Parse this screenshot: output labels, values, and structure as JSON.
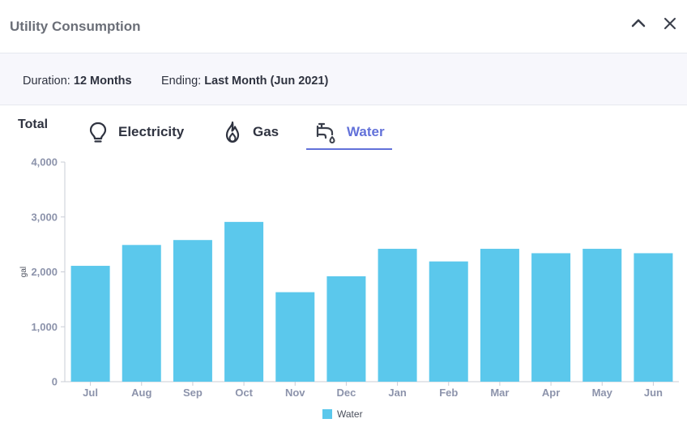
{
  "header": {
    "title": "Utility Consumption",
    "collapse_icon": "chevron-up-icon",
    "close_icon": "close-icon"
  },
  "filters": {
    "duration_label": "Duration:",
    "duration_value": "12 Months",
    "ending_label": "Ending:",
    "ending_value": "Last Month (Jun 2021)"
  },
  "tabs": {
    "total": "Total",
    "items": [
      {
        "label": "Electricity",
        "icon": "lightbulb-icon",
        "active": false
      },
      {
        "label": "Gas",
        "icon": "flame-icon",
        "active": false
      },
      {
        "label": "Water",
        "icon": "faucet-icon",
        "active": true
      }
    ]
  },
  "colors": {
    "accent": "#6271d9",
    "bar": "#5bc8ec"
  },
  "chart_data": {
    "type": "bar",
    "categories": [
      "Jul",
      "Aug",
      "Sep",
      "Oct",
      "Nov",
      "Dec",
      "Jan",
      "Feb",
      "Mar",
      "Apr",
      "May",
      "Jun"
    ],
    "series": [
      {
        "name": "Water",
        "values": [
          2110,
          2490,
          2580,
          2910,
          1630,
          1920,
          2420,
          2190,
          2420,
          2340,
          2420,
          2340
        ]
      }
    ],
    "ylabel": "gal",
    "ylim": [
      0,
      4000
    ],
    "yticks": [
      "0",
      "1,000",
      "2,000",
      "3,000",
      "4,000"
    ],
    "ytick_values": [
      0,
      1000,
      2000,
      3000,
      4000
    ],
    "legend_position": "bottom-center",
    "grid": false
  }
}
